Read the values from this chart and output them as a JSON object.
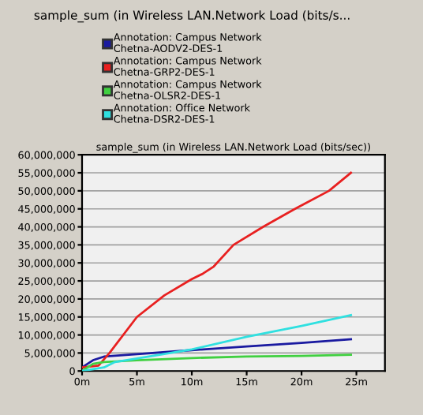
{
  "chart_data": {
    "type": "line",
    "title": "sample_sum (in Wireless LAN.Network Load (bits/sec))",
    "annotations": [
      "sample_sum (in Wireless LAN.Network Load (bits/s..."
    ],
    "xlim": [
      0,
      27.6
    ],
    "ylim": [
      0,
      60000000
    ],
    "xticks": [
      {
        "value": 0,
        "label": "0m"
      },
      {
        "value": 5,
        "label": "5m"
      },
      {
        "value": 10,
        "label": "10m"
      },
      {
        "value": 15,
        "label": "15m"
      },
      {
        "value": 20,
        "label": "20m"
      },
      {
        "value": 25,
        "label": "25m"
      }
    ],
    "yticks": [
      {
        "value": 0,
        "label": "0"
      },
      {
        "value": 5000000,
        "label": "5,000,000"
      },
      {
        "value": 10000000,
        "label": "10,000,000"
      },
      {
        "value": 15000000,
        "label": "15,000,000"
      },
      {
        "value": 20000000,
        "label": "20,000,000"
      },
      {
        "value": 25000000,
        "label": "25,000,000"
      },
      {
        "value": 30000000,
        "label": "30,000,000"
      },
      {
        "value": 35000000,
        "label": "35,000,000"
      },
      {
        "value": 40000000,
        "label": "40,000,000"
      },
      {
        "value": 45000000,
        "label": "45,000,000"
      },
      {
        "value": 50000000,
        "label": "50,000,000"
      },
      {
        "value": 55000000,
        "label": "55,000,000"
      },
      {
        "value": 60000000,
        "label": "60,000,000"
      }
    ],
    "grid": "y",
    "legend": "top",
    "marker": "none",
    "line_style": "solid",
    "series": [
      {
        "name": "Annotation: Campus Network\nChetna-AODV2-DES-1",
        "color": "#1a1aa0",
        "x": [
          0,
          1,
          2,
          5,
          10,
          15,
          20,
          24.5
        ],
        "values": [
          1000000,
          3000000,
          4000000,
          4700000,
          5800000,
          6800000,
          7800000,
          8800000
        ]
      },
      {
        "name": "Annotation: Campus Network\nChetna-GRP2-DES-1",
        "color": "#e82020",
        "x": [
          0,
          1.5,
          2.5,
          5,
          7.5,
          10,
          11,
          12,
          13.8,
          16.5,
          19.4,
          22.5,
          24.5
        ],
        "values": [
          1000000,
          1500000,
          5000000,
          15000000,
          21000000,
          25500000,
          27000000,
          29000000,
          35000000,
          40000000,
          45000000,
          50000000,
          55000000
        ]
      },
      {
        "name": "Annotation: Campus Network\nChetna-OLSR2-DES-1",
        "color": "#40d040",
        "x": [
          0,
          1,
          2,
          5,
          10,
          15,
          20,
          24.5
        ],
        "values": [
          0,
          2000000,
          2500000,
          3000000,
          3600000,
          4000000,
          4200000,
          4500000
        ]
      },
      {
        "name": "Annotation: Office Network\nChetna-DSR2-DES-1",
        "color": "#30e0e0",
        "x": [
          0,
          2,
          3,
          5,
          10,
          15,
          20,
          24.5
        ],
        "values": [
          0,
          1000000,
          2500000,
          3500000,
          6000000,
          9500000,
          12500000,
          15500000
        ]
      }
    ]
  }
}
